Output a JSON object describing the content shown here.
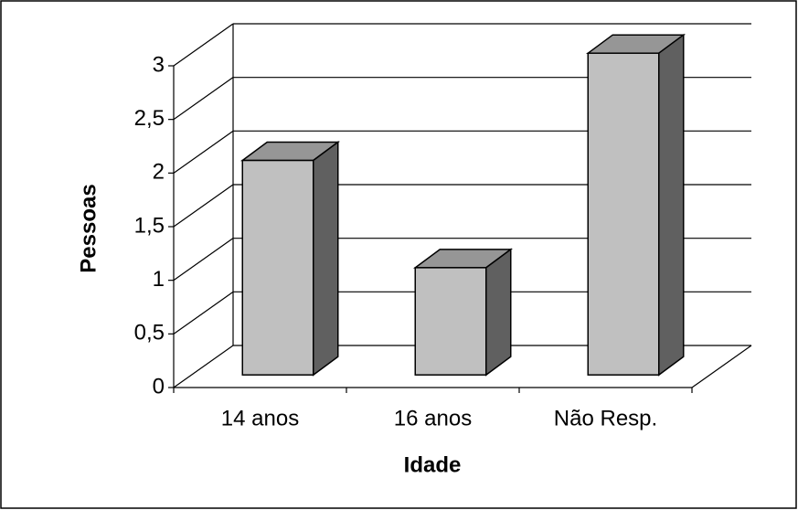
{
  "chart_data": {
    "type": "bar3d",
    "categories": [
      "14 anos",
      "16 anos",
      "Não Resp."
    ],
    "values": [
      2,
      1,
      3
    ],
    "ylim": [
      0,
      3
    ],
    "yticks": [
      0,
      {
        "value": 0.5,
        "label": "0,5"
      },
      1,
      {
        "value": 1.5,
        "label": "1,5"
      },
      2,
      {
        "value": 2.5,
        "label": "2,5"
      },
      3
    ],
    "ylabel": "Pessoas",
    "xlabel": "Idade",
    "grid": true,
    "color": "#c0c0c0",
    "top_color": "#969696",
    "side_color": "#606060"
  }
}
